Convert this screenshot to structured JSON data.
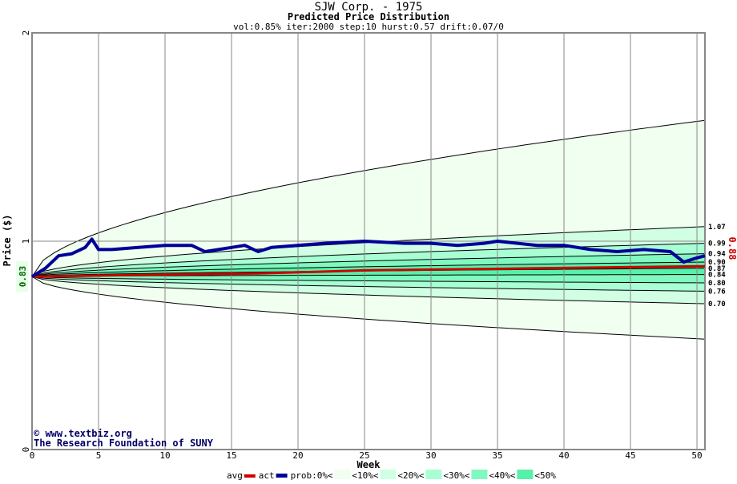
{
  "chart_data": {
    "type": "area",
    "title": "SJW Corp. - 1975",
    "subtitle": "Predicted Price Distribution",
    "params": "vol:0.85% iter:2000 step:10 hurst:0.57 drift:0.07/0",
    "xlabel": "Week",
    "ylabel": "Price ($)",
    "xlim": [
      0,
      50.6
    ],
    "ylim": [
      0,
      2
    ],
    "xticks": [
      0,
      5,
      10,
      15,
      20,
      25,
      30,
      35,
      40,
      45,
      50
    ],
    "yticks": [
      0,
      1,
      2
    ],
    "start_price": 0.83,
    "start_label": "0.83",
    "end_avg_label": "0.88",
    "bands": [
      {
        "upper": 1.58,
        "lower": 0.53,
        "color": "#f0fff0"
      },
      {
        "upper": 1.07,
        "lower": 0.7,
        "color": "#d0ffe4"
      },
      {
        "upper": 0.99,
        "lower": 0.76,
        "color": "#a8ffd4"
      },
      {
        "upper": 0.94,
        "lower": 0.8,
        "color": "#80f8c0"
      },
      {
        "upper": 0.9,
        "lower": 0.84,
        "color": "#58f0a8"
      }
    ],
    "median": 0.87,
    "right_labels": [
      "1.07",
      "0.99",
      "0.94",
      "0.90",
      "0.87",
      "0.84",
      "0.80",
      "0.76",
      "0.70"
    ],
    "avg_series": {
      "name": "avg",
      "color": "#cc0000",
      "x": [
        0,
        10,
        17,
        25,
        38,
        50.6
      ],
      "y": [
        0.83,
        0.84,
        0.845,
        0.86,
        0.87,
        0.88
      ]
    },
    "act_series": {
      "name": "act",
      "color": "#000099",
      "x": [
        0,
        1,
        2,
        3,
        4,
        4.5,
        5,
        6,
        8,
        10,
        12,
        13,
        15,
        16,
        17,
        18,
        20,
        22,
        25,
        28,
        30,
        32,
        34,
        35,
        38,
        40,
        42,
        44,
        46,
        48,
        49,
        50,
        50.6
      ],
      "y": [
        0.83,
        0.87,
        0.93,
        0.94,
        0.97,
        1.01,
        0.96,
        0.96,
        0.97,
        0.98,
        0.98,
        0.95,
        0.97,
        0.98,
        0.95,
        0.97,
        0.98,
        0.99,
        1.0,
        0.99,
        0.99,
        0.98,
        0.99,
        1.0,
        0.98,
        0.98,
        0.96,
        0.95,
        0.96,
        0.95,
        0.9,
        0.92,
        0.93
      ]
    },
    "legend": {
      "avg": "avg",
      "act": "act",
      "prob": "prob:0%<",
      "items": [
        "<10%<",
        "<20%<",
        "<30%<",
        "<40%<",
        "<50%"
      ]
    },
    "credit1": "www.textbiz.org",
    "credit2": "The Research Foundation of SUNY"
  }
}
